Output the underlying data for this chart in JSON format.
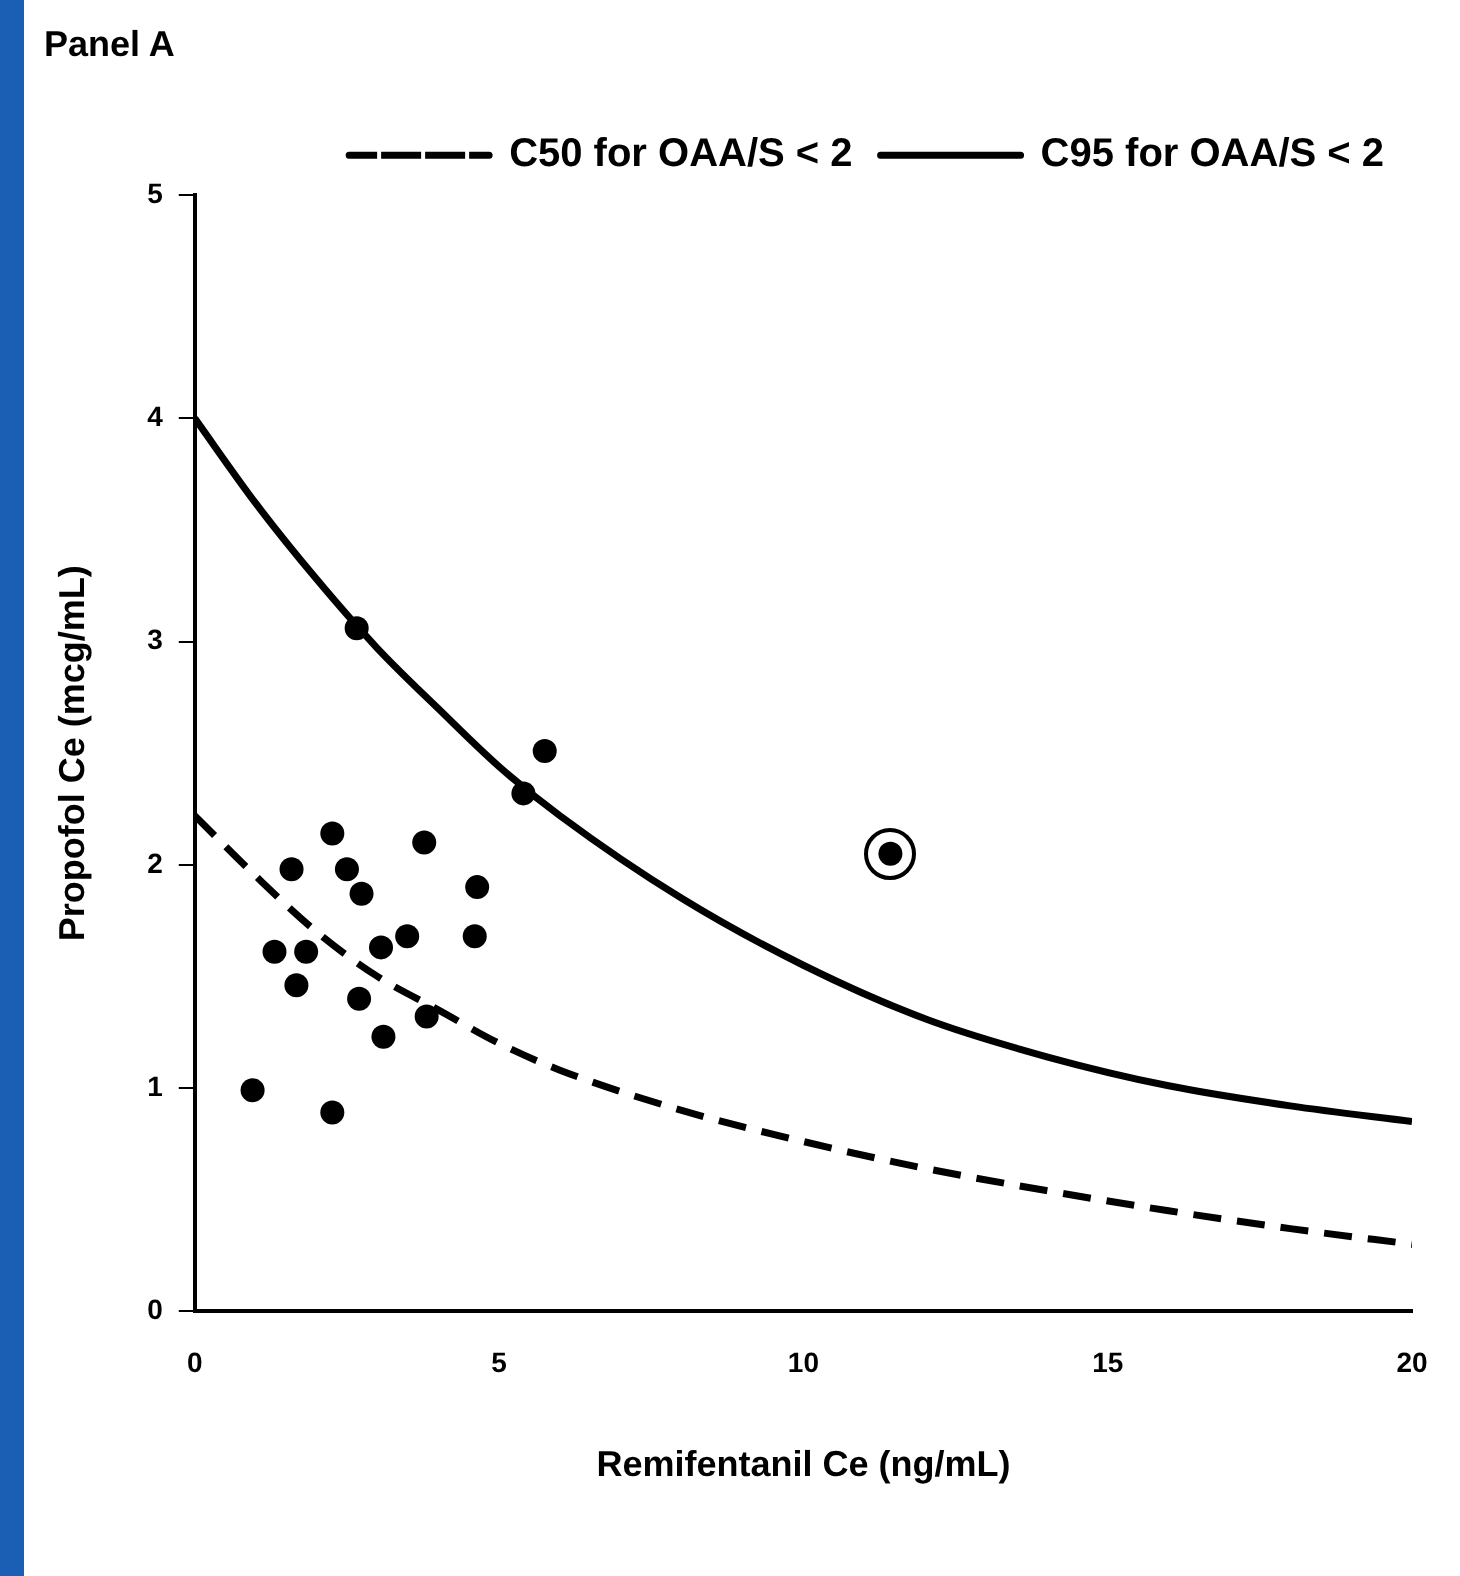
{
  "chart_data": {
    "type": "scatter",
    "title": "Panel A",
    "xlabel": "Remifentanil Ce (ng/mL)",
    "ylabel": "Propofol Ce (mcg/mL)",
    "xlim": [
      0,
      20
    ],
    "xticks": [
      0,
      5,
      10,
      15,
      20
    ],
    "ylim": [
      0,
      5
    ],
    "yticks": [
      0,
      1,
      2,
      3,
      4,
      5
    ],
    "grid": false,
    "legend": "top right",
    "marker": "circle",
    "series": [
      {
        "type": "scatter",
        "color": "#000000",
        "x": [
          2.66,
          5.75,
          5.4,
          2.26,
          3.77,
          1.59,
          2.5,
          2.74,
          4.64,
          4.6,
          3.49,
          3.06,
          1.31,
          1.83,
          1.67,
          2.7,
          3.81,
          3.1,
          0.95,
          2.26
        ],
        "values": [
          3.06,
          2.51,
          2.32,
          2.14,
          2.1,
          1.98,
          1.98,
          1.87,
          1.9,
          1.68,
          1.68,
          1.63,
          1.61,
          1.61,
          1.46,
          1.4,
          1.32,
          1.23,
          0.99,
          0.89
        ]
      },
      {
        "type": "scatter",
        "color": "#000000",
        "x": [
          11.43
        ],
        "values": [
          2.05
        ]
      },
      {
        "type": "line",
        "name": "C50 for OAA/S < 2",
        "color": "#000000",
        "line_style": "dashed",
        "marker": "none",
        "x": [
          0,
          1,
          2,
          3,
          4,
          5,
          6,
          8,
          10,
          12,
          14,
          16,
          18,
          20
        ],
        "values": [
          2.22,
          1.95,
          1.7,
          1.5,
          1.35,
          1.2,
          1.08,
          0.9,
          0.76,
          0.64,
          0.54,
          0.45,
          0.37,
          0.3
        ]
      },
      {
        "type": "line",
        "name": "C95 for OAA/S < 2",
        "color": "#000000",
        "line_style": "solid",
        "marker": "none",
        "x": [
          0,
          1,
          2,
          3,
          4,
          5,
          6,
          8,
          10,
          12,
          14,
          16,
          18,
          20
        ],
        "values": [
          4.0,
          3.62,
          3.28,
          2.97,
          2.7,
          2.44,
          2.22,
          1.85,
          1.55,
          1.31,
          1.14,
          1.01,
          0.92,
          0.85
        ]
      }
    ]
  }
}
